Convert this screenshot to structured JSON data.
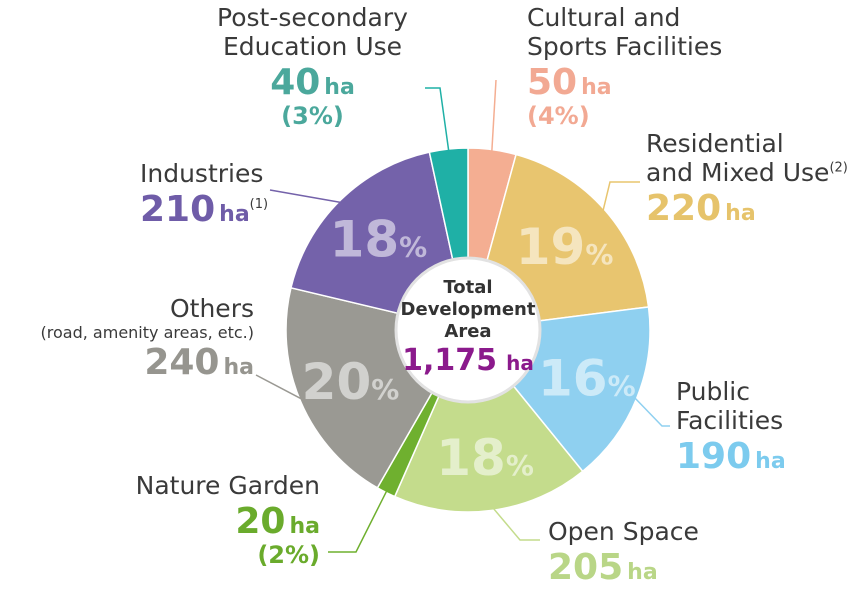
{
  "chart_data": {
    "type": "pie",
    "center": {
      "title_lines": [
        "Total",
        "Development",
        "Area"
      ],
      "total_value": "1,175",
      "total_unit": "ha",
      "total_color": "#8b1a8c"
    },
    "slices": [
      {
        "name": "Cultural and Sports Facilities",
        "name_lines": [
          "Cultural and",
          "Sports Facilities"
        ],
        "value": 50,
        "unit": "ha",
        "percent": 4,
        "color": "#f4ae92"
      },
      {
        "name": "Residential and Mixed Use",
        "name_lines": [
          "Residential",
          "and Mixed Use"
        ],
        "footnote": "(2)",
        "value": 220,
        "unit": "ha",
        "percent": 19,
        "color": "#e8c56f"
      },
      {
        "name": "Public Facilities",
        "name_lines": [
          "Public",
          "Facilities"
        ],
        "value": 190,
        "unit": "ha",
        "percent": 16,
        "color": "#8fd0f0"
      },
      {
        "name": "Open Space",
        "name_lines": [
          "Open Space"
        ],
        "value": 205,
        "unit": "ha",
        "percent": 18,
        "color": "#c4dc8c"
      },
      {
        "name": "Nature Garden",
        "name_lines": [
          "Nature Garden"
        ],
        "value": 20,
        "unit": "ha",
        "percent": 2,
        "color": "#6fb02f"
      },
      {
        "name": "Others",
        "name_lines": [
          "Others"
        ],
        "note": "(road, amenity areas, etc.)",
        "value": 240,
        "unit": "ha",
        "percent": 20,
        "color": "#9a9993"
      },
      {
        "name": "Industries",
        "name_lines": [
          "Industries"
        ],
        "footnote": "(1)",
        "value": 210,
        "unit": "ha",
        "percent": 18,
        "color": "#7462aa"
      },
      {
        "name": "Post-secondary Education Use",
        "name_lines": [
          "Post-secondary",
          "Education Use"
        ],
        "value": 40,
        "unit": "ha",
        "percent": 3,
        "color": "#1fb0a6"
      }
    ]
  }
}
